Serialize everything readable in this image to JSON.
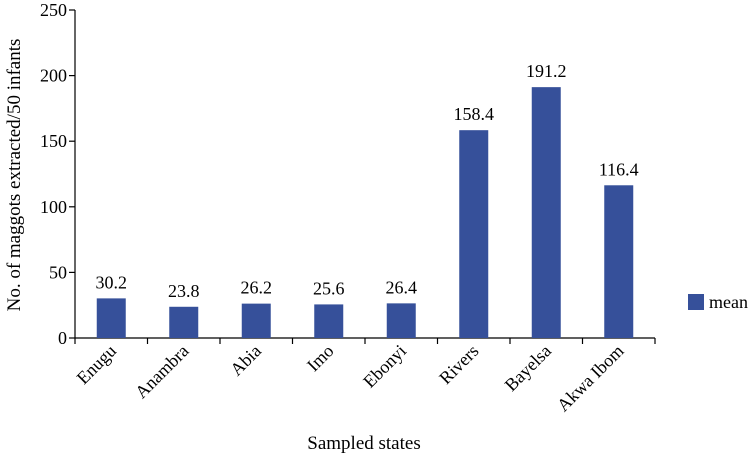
{
  "chart_data": {
    "type": "bar",
    "categories": [
      "Enugu",
      "Anambra",
      "Abia",
      "Imo",
      "Ebonyi",
      "Rivers",
      "Bayelsa",
      "Akwa Ibom"
    ],
    "series": [
      {
        "name": "mean",
        "values": [
          30.2,
          23.8,
          26.2,
          25.6,
          26.4,
          158.4,
          191.2,
          116.4
        ]
      }
    ],
    "data_labels": [
      "30.2",
      "23.8",
      "26.2",
      "25.6",
      "26.4",
      "158.4",
      "191.2",
      "116.4"
    ],
    "title": "",
    "xlabel": "Sampled states",
    "ylabel": "No. of maggots extracted/50 infants",
    "ylim": [
      0,
      250
    ],
    "yticks": [
      0,
      50,
      100,
      150,
      200,
      250
    ],
    "grid": false,
    "legend_position": "right",
    "bar_color": "#36509a"
  }
}
